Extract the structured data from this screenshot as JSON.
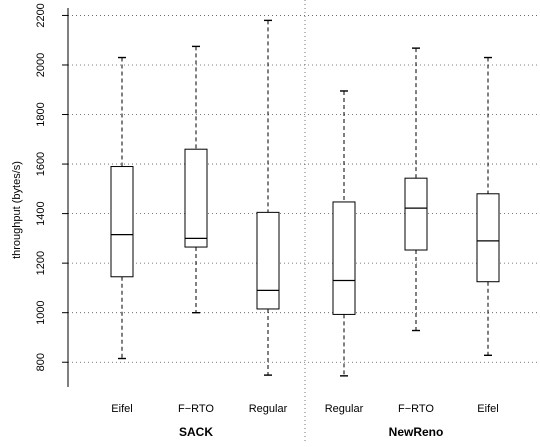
{
  "chart_data": {
    "type": "box",
    "ylabel": "throughput (bytes/s)",
    "ylim": [
      700,
      2230
    ],
    "yticks": [
      800,
      1000,
      1200,
      1400,
      1600,
      1800,
      2000,
      2200
    ],
    "grid": "horizontal dotted",
    "groups": [
      {
        "name": "SACK",
        "categories": [
          "Eifel",
          "F−RTO",
          "Regular"
        ]
      },
      {
        "name": "NewReno",
        "categories": [
          "Regular",
          "F−RTO",
          "Eifel"
        ]
      }
    ],
    "boxes": [
      {
        "group": "SACK",
        "category": "Eifel",
        "min": 815,
        "q1": 1145,
        "median": 1315,
        "q3": 1590,
        "max": 2030
      },
      {
        "group": "SACK",
        "category": "F−RTO",
        "min": 1000,
        "q1": 1265,
        "median": 1300,
        "q3": 1660,
        "max": 2075
      },
      {
        "group": "SACK",
        "category": "Regular",
        "min": 748,
        "q1": 1015,
        "median": 1090,
        "q3": 1405,
        "max": 2180
      },
      {
        "group": "NewReno",
        "category": "Regular",
        "min": 745,
        "q1": 993,
        "median": 1130,
        "q3": 1447,
        "max": 1895
      },
      {
        "group": "NewReno",
        "category": "F−RTO",
        "min": 928,
        "q1": 1253,
        "median": 1422,
        "q3": 1543,
        "max": 2068
      },
      {
        "group": "NewReno",
        "category": "Eifel",
        "min": 828,
        "q1": 1125,
        "median": 1290,
        "q3": 1480,
        "max": 2030
      }
    ]
  }
}
